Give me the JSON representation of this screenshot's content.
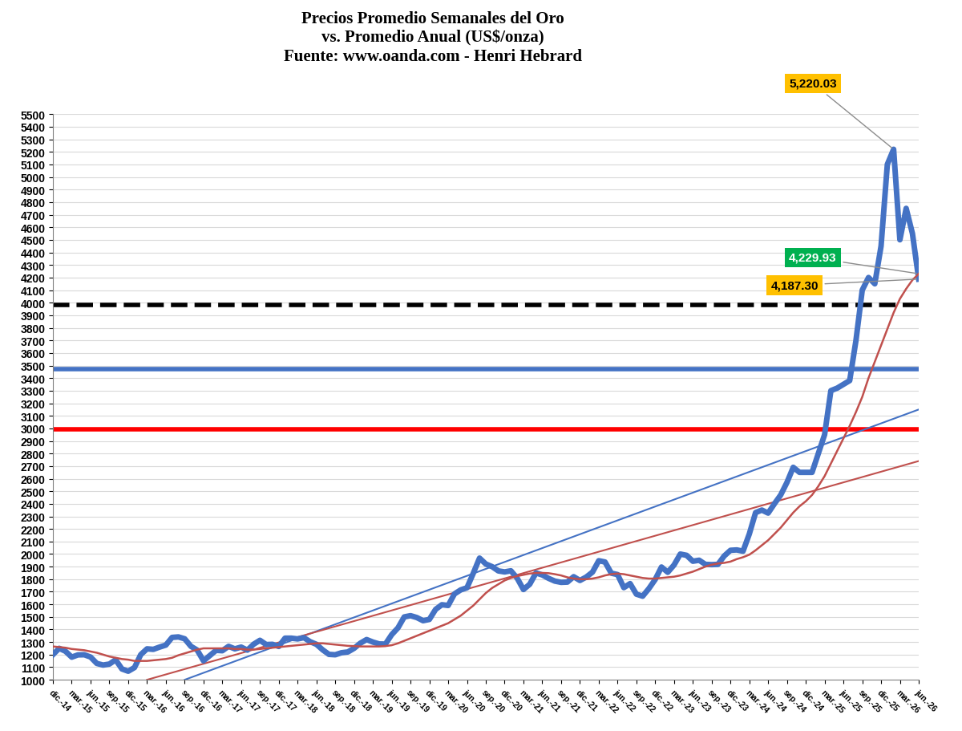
{
  "chart_data": {
    "type": "line",
    "title": "Precios Promedio Semanales del Oro\nvs. Promedio Anual (US$/onza)\nFuente: www.oanda.com - Henri Hebrard",
    "categories": [
      "dic.-14",
      null,
      null,
      "mar.-15",
      null,
      null,
      "jun.-15",
      null,
      null,
      "sep.-15",
      null,
      null,
      "dic.-15",
      null,
      null,
      "mar.-16",
      null,
      null,
      "jun.-16",
      null,
      null,
      "sep.-16",
      null,
      null,
      "dic.-16",
      null,
      null,
      "mar.-17",
      null,
      null,
      "jun.-17",
      null,
      null,
      "sep.-17",
      null,
      null,
      "dic.-17",
      null,
      null,
      "mar.-18",
      null,
      null,
      "jun.-18",
      null,
      null,
      "sep.-18",
      null,
      null,
      "dic.-18",
      null,
      null,
      "mar.-19",
      null,
      null,
      "jun.-19",
      null,
      null,
      "sep.-19",
      null,
      null,
      "dic.-19",
      null,
      null,
      "mar.-20",
      null,
      null,
      "jun.-20",
      null,
      null,
      "sep.-20",
      null,
      null,
      "dic.-20",
      null,
      null,
      "mar.-21",
      null,
      null,
      "jun.-21",
      null,
      null,
      "sep.-21",
      null,
      null,
      "dic.-21",
      null,
      null,
      "mar.-22",
      null,
      null,
      "jun.-22",
      null,
      null,
      "sep.-22",
      null,
      null,
      "dic.-22",
      null,
      null,
      "mar.-23",
      null,
      null,
      "jun.-23",
      null,
      null,
      "sep.-23",
      null,
      null,
      "dic.-23",
      null,
      null,
      "mar.-24",
      null,
      null,
      "jun.-24",
      null,
      null,
      "sep.-24",
      null,
      null,
      "dic.-24",
      null,
      null,
      "mar.-25",
      null,
      null,
      "jun.-25",
      null,
      null,
      "sep.-25",
      null,
      null,
      "dic.-25",
      null,
      null,
      "mar.-26",
      null,
      null,
      "jun.-26"
    ],
    "series": [
      {
        "type": "line",
        "color": "#4472C4",
        "values": [
          1200,
          1250,
          1227,
          1180,
          1198,
          1199,
          1181,
          1130,
          1117,
          1125,
          1159,
          1086,
          1068,
          1097,
          1200,
          1246,
          1242,
          1260,
          1276,
          1337,
          1341,
          1326,
          1266,
          1236,
          1151,
          1192,
          1234,
          1231,
          1266,
          1246,
          1260,
          1236,
          1283,
          1314,
          1280,
          1282,
          1265,
          1331,
          1331,
          1325,
          1335,
          1303,
          1282,
          1238,
          1202,
          1199,
          1215,
          1221,
          1250,
          1291,
          1320,
          1300,
          1285,
          1284,
          1359,
          1413,
          1500,
          1510,
          1495,
          1470,
          1480,
          1560,
          1597,
          1591,
          1683,
          1715,
          1732,
          1847,
          1968,
          1921,
          1900,
          1866,
          1858,
          1867,
          1808,
          1718,
          1760,
          1850,
          1834,
          1807,
          1785,
          1775,
          1777,
          1820,
          1790,
          1817,
          1856,
          1947,
          1937,
          1848,
          1837,
          1733,
          1765,
          1681,
          1665,
          1726,
          1798,
          1897,
          1855,
          1913,
          2000,
          1990,
          1943,
          1951,
          1918,
          1916,
          1918,
          1985,
          2030,
          2033,
          2023,
          2160,
          2330,
          2350,
          2326,
          2400,
          2470,
          2570,
          2690,
          2650,
          2650,
          2650,
          2800,
          2950,
          3300,
          3320,
          3350,
          3380,
          3700,
          4100,
          4200,
          4150,
          4450,
          5100,
          5220.03,
          4500,
          4750,
          4550,
          4187.3
        ]
      },
      {
        "type": "line",
        "color": "#C0504D",
        "values": [
          1265,
          1260,
          1255,
          1245,
          1240,
          1235,
          1225,
          1215,
          1200,
          1185,
          1175,
          1165,
          1160,
          1150,
          1150,
          1150,
          1155,
          1160,
          1165,
          1175,
          1195,
          1210,
          1225,
          1240,
          1250,
          1250,
          1250,
          1250,
          1250,
          1245,
          1245,
          1240,
          1240,
          1245,
          1250,
          1255,
          1260,
          1265,
          1270,
          1275,
          1280,
          1285,
          1290,
          1290,
          1285,
          1280,
          1275,
          1270,
          1268,
          1265,
          1265,
          1265,
          1265,
          1268,
          1275,
          1290,
          1310,
          1330,
          1350,
          1370,
          1390,
          1410,
          1430,
          1450,
          1480,
          1510,
          1550,
          1590,
          1640,
          1690,
          1730,
          1760,
          1790,
          1810,
          1825,
          1835,
          1845,
          1850,
          1850,
          1848,
          1840,
          1830,
          1815,
          1805,
          1800,
          1800,
          1805,
          1815,
          1830,
          1840,
          1845,
          1840,
          1830,
          1820,
          1810,
          1805,
          1805,
          1810,
          1815,
          1820,
          1830,
          1845,
          1860,
          1880,
          1900,
          1915,
          1925,
          1930,
          1940,
          1960,
          1975,
          1995,
          2030,
          2070,
          2110,
          2160,
          2210,
          2270,
          2330,
          2380,
          2420,
          2470,
          2540,
          2620,
          2720,
          2820,
          2920,
          3020,
          3130,
          3250,
          3400,
          3530,
          3660,
          3790,
          3920,
          4030,
          4110,
          4180,
          4229.93
        ]
      },
      {
        "type": "trendline",
        "color": "#4472C4",
        "x": [
          "sep.-16",
          "jun.-26"
        ],
        "values": [
          1000,
          3150
        ]
      },
      {
        "type": "trendline",
        "color": "#C0504D",
        "x": [
          "mar.-16",
          "jun.-26"
        ],
        "values": [
          1000,
          2740
        ]
      }
    ],
    "reference_lines": [
      {
        "value": 3980,
        "color": "#000000",
        "line_style": "dashed"
      },
      {
        "value": 3470,
        "color": "#4472C4",
        "line_style": "solid"
      },
      {
        "value": 2990,
        "color": "#FF0000",
        "line_style": "solid"
      }
    ],
    "annotations": [
      {
        "text": "5,220.03",
        "value": 5220.03,
        "color": "#FFC000"
      },
      {
        "text": "4,229.93",
        "value": 4229.93,
        "color": "#00B050"
      },
      {
        "text": "4,187.30",
        "value": 4187.3,
        "color": "#FFC000"
      }
    ],
    "ylim": [
      1000,
      5500
    ],
    "yticks": [
      1000,
      1100,
      1200,
      1300,
      1400,
      1500,
      1600,
      1700,
      1800,
      1900,
      2000,
      2100,
      2200,
      2300,
      2400,
      2500,
      2600,
      2700,
      2800,
      2900,
      3000,
      3100,
      3200,
      3300,
      3400,
      3500,
      3600,
      3700,
      3800,
      3900,
      4000,
      4100,
      4200,
      4300,
      4400,
      4500,
      4600,
      4700,
      4800,
      4900,
      5000,
      5100,
      5200,
      5300,
      5400,
      5500
    ],
    "grid": true
  }
}
